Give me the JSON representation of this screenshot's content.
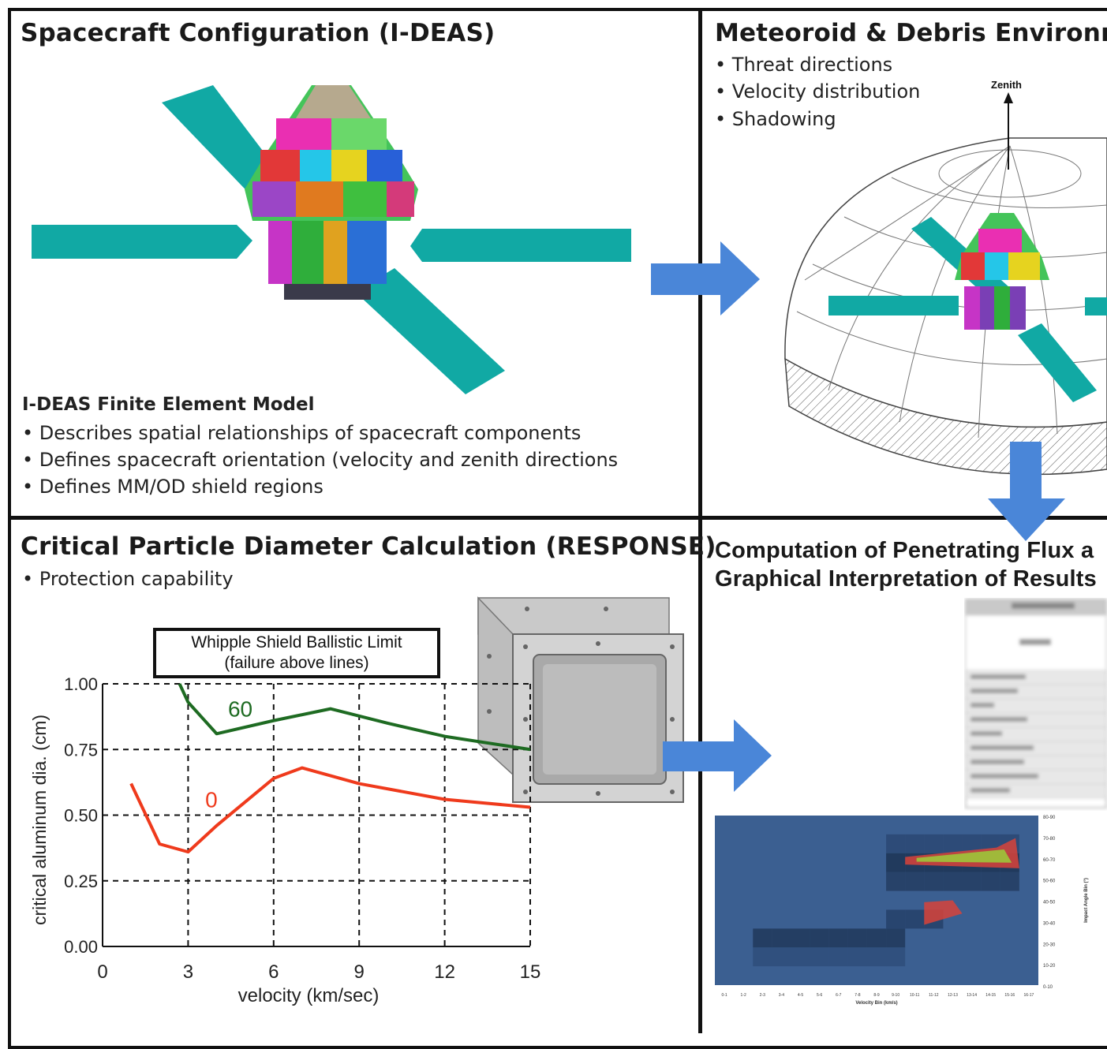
{
  "colors": {
    "arrow": "#4a86d8",
    "panel": "#11a9a4",
    "green": "#1e6b22",
    "red": "#ef3a1c",
    "heat_bg": "#3b5f91"
  },
  "panels": {
    "config": {
      "title": "Spacecraft Configuration (I-DEAS)",
      "model_heading": "I-DEAS Finite Element Model",
      "bullets": [
        "• Describes spatial relationships of spacecraft components",
        "• Defines spacecraft orientation (velocity and zenith directions",
        "• Defines MM/OD shield regions"
      ]
    },
    "environment": {
      "title": "Meteoroid & Debris Environme",
      "bullets": [
        "• Threat directions",
        "• Velocity distribution",
        "• Shadowing"
      ],
      "zenith_label": "Zenith"
    },
    "response": {
      "title": "Critical Particle Diameter Calculation (RESPONSE)",
      "bullets": [
        "• Protection capability"
      ]
    },
    "computation": {
      "title_line1": "Computation of Penetrating Flux a",
      "title_line2": "Graphical Interpretation of Results"
    }
  },
  "chart_data": {
    "type": "line",
    "title": "Whipple Shield Ballistic Limit",
    "subtitle": "(failure above lines)",
    "xlabel": "velocity (km/sec)",
    "ylabel": "critical aluminum dia. (cm)",
    "xlim": [
      0,
      15
    ],
    "ylim": [
      0,
      1
    ],
    "x_ticks": [
      "0",
      "3",
      "6",
      "9",
      "12",
      "15"
    ],
    "y_ticks": [
      "0.00",
      "0.25",
      "0.50",
      "0.75",
      "1.00"
    ],
    "grid": true,
    "series": [
      {
        "name": "60",
        "color": "#1e6b22",
        "points": [
          [
            2.7,
            1.0
          ],
          [
            3.0,
            0.93
          ],
          [
            4.0,
            0.81
          ],
          [
            6.0,
            0.86
          ],
          [
            8.0,
            0.905
          ],
          [
            10.0,
            0.85
          ],
          [
            12.0,
            0.8
          ],
          [
            15.0,
            0.75
          ]
        ]
      },
      {
        "name": "0",
        "color": "#ef3a1c",
        "points": [
          [
            1.0,
            0.62
          ],
          [
            2.0,
            0.39
          ],
          [
            3.0,
            0.36
          ],
          [
            4.0,
            0.46
          ],
          [
            6.0,
            0.64
          ],
          [
            7.0,
            0.68
          ],
          [
            9.0,
            0.62
          ],
          [
            12.0,
            0.56
          ],
          [
            15.0,
            0.53
          ]
        ]
      }
    ]
  },
  "heatmap": {
    "y_labels": [
      "80-90",
      "70-80",
      "60-70",
      "50-60",
      "40-50",
      "30-40",
      "20-30",
      "10-20",
      "0-10"
    ],
    "y_title": "Impact Angle Bin (°)",
    "x_labels": [
      "0-1",
      "1-2",
      "2-3",
      "3-4",
      "4-5",
      "5-6",
      "6-7",
      "7-8",
      "8-9",
      "9-10",
      "10-11",
      "11-12",
      "12-13",
      "13-14",
      "14-15",
      "15-16",
      "16-17"
    ],
    "x_title": "Velocity Bin (km/s)"
  }
}
